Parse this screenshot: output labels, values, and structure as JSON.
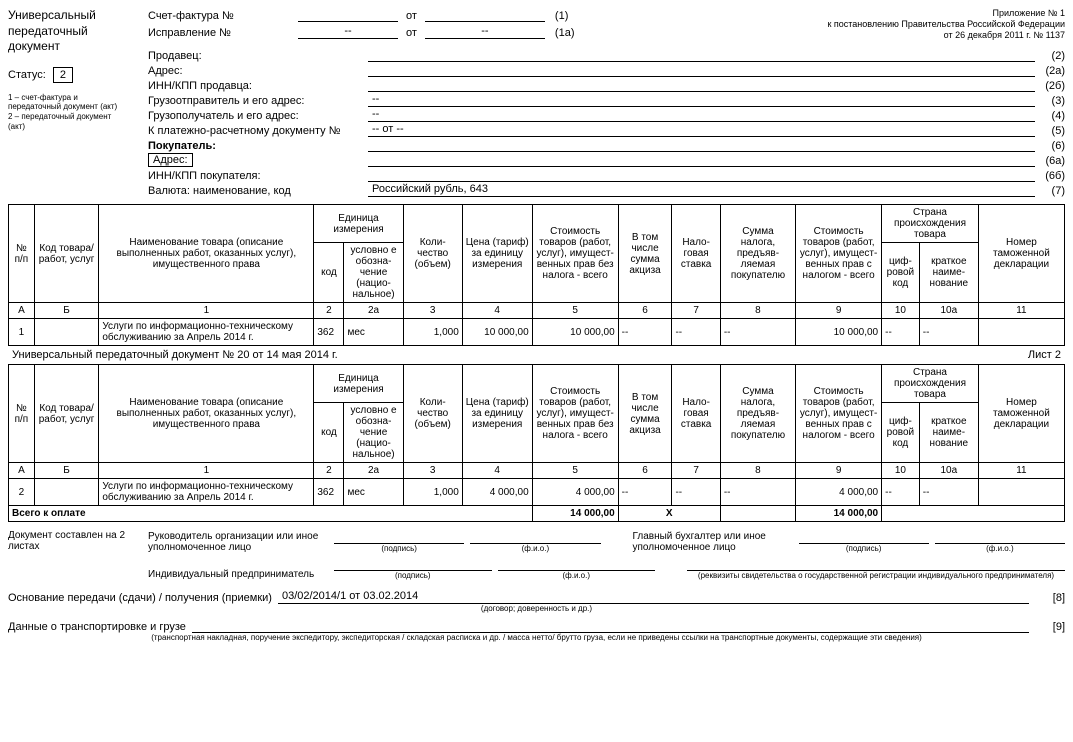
{
  "appendix": {
    "l1": "Приложение № 1",
    "l2": "к постановлению Правительства Российской Федерации",
    "l3": "от 26 декабря 2011 г. № 1137"
  },
  "leftcol": {
    "title": "Универсальный передаточный документ",
    "status_label": "Статус:",
    "status_value": "2",
    "footnote": "1 – счет-фактура и передаточный документ (акт)\n2 – передаточный документ (акт)"
  },
  "inv": {
    "sf_label": "Счет-фактура №",
    "sf_from": "от",
    "sf_code": "(1)",
    "corr_label": "Исправление №",
    "corr_dash": "--",
    "corr_from": "от",
    "corr_dash2": "--",
    "corr_code": "(1а)"
  },
  "seller": [
    {
      "label": "Продавец:",
      "val": "",
      "code": "(2)"
    },
    {
      "label": "Адрес:",
      "val": "",
      "code": "(2а)"
    },
    {
      "label": "ИНН/КПП продавца:",
      "val": "",
      "code": "(2б)"
    },
    {
      "label": "Грузоотправитель и его адрес:",
      "val": "--",
      "code": "(3)"
    },
    {
      "label": "Грузополучатель и его адрес:",
      "val": "--",
      "code": "(4)"
    },
    {
      "label": "К платежно-расчетному документу №",
      "val": "-- от --",
      "code": "(5)"
    },
    {
      "label": "Покупатель:",
      "val": "",
      "code": "(6)",
      "bold": true
    },
    {
      "label": "Адрес:",
      "val": "",
      "code": "(6а)",
      "box": true
    },
    {
      "label": "ИНН/КПП покупателя:",
      "val": "",
      "code": "(6б)"
    },
    {
      "label": "Валюта: наименование, код",
      "val": "Российский рубль, 643",
      "code": "(7)"
    }
  ],
  "hdr": {
    "c_num": "№ п/п",
    "c_code": "Код товара/ работ, услуг",
    "c_name": "Наименование товара (описание выполненных работ, оказанных услуг), имущественного права",
    "c_unit": "Единица измерения",
    "c_unit_code": "код",
    "c_unit_name": "условно е обозна­чение (нацио­нальное)",
    "c_qty": "Коли­чество (объем)",
    "c_price": "Цена (тариф) за единицу измерения",
    "c_sum_nt": "Стоимость товаров (работ, услуг), имущест­венных прав без налога - всего",
    "c_excise": "В том числе сумма акциза",
    "c_rate": "Нало­говая ставка",
    "c_tax": "Сумма налога, предъяв­ляемая покупателю",
    "c_sum_t": "Стоимость товаров (работ, услуг), имущест­венных прав с налогом - всего",
    "c_country": "Страна происхождения товара",
    "c_country_code": "циф­ро­вой код",
    "c_country_name": "краткое наиме­нование",
    "c_decl": "Номер таможенной декларации"
  },
  "letters": {
    "a": "А",
    "b": "Б",
    "c1": "1",
    "c2": "2",
    "c2a": "2а",
    "c3": "3",
    "c4": "4",
    "c5": "5",
    "c6": "6",
    "c7": "7",
    "c8": "8",
    "c9": "9",
    "c10": "10",
    "c10a": "10а",
    "c11": "11"
  },
  "row1": {
    "n": "1",
    "code": "",
    "name": "Услуги по информационно-техническому обслуживанию за Апрель 2014 г.",
    "ucode": "362",
    "uname": "мес",
    "qty": "1,000",
    "price": "10 000,00",
    "sum_nt": "10 000,00",
    "excise": "--",
    "rate": "--",
    "tax": "--",
    "sum_t": "10 000,00",
    "cc": "--",
    "cn": "--",
    "decl": ""
  },
  "page2_title": "Универсальный передаточный документ № 20 от 14 мая 2014 г.",
  "page2_sheet": "Лист 2",
  "row2": {
    "n": "2",
    "code": "",
    "name": "Услуги по информационно-техническому обслуживанию за Апрель 2014 г.",
    "ucode": "362",
    "uname": "мес",
    "qty": "1,000",
    "price": "4 000,00",
    "sum_nt": "4 000,00",
    "excise": "--",
    "rate": "--",
    "tax": "--",
    "sum_t": "4 000,00",
    "cc": "--",
    "cn": "--",
    "decl": ""
  },
  "totals": {
    "label": "Всего к оплате",
    "sum_nt": "14 000,00",
    "x": "X",
    "sum_t": "14 000,00"
  },
  "sig": {
    "doc_on": "Документ составлен на 2 листах",
    "ruk": "Руководитель организации или иное уполномоченное лицо",
    "gb": "Главный бухгалтер или иное уполномоченное лицо",
    "ip": "Индивидуальный предприниматель",
    "podpis": "(подпись)",
    "fio": "(ф.и.о.)",
    "rekv": "(реквизиты свидетельства о государственной регистрации индивидуального предпринимателя)"
  },
  "foot": {
    "osn_label": "Основание передачи (сдачи) / получения (приемки)",
    "osn_val": "03/02/2014/1 от 03.02.2014",
    "osn_code": "[8]",
    "osn_sub": "(договор; доверенность и др.)",
    "trans_label": "Данные о транспортировке и грузе",
    "trans_code": "[9]",
    "trans_sub": "(транспортная накладная, поручение экспедитору, экспедиторская / складская расписка и др. / масса нетто/ брутто груза, если не приведены ссылки на транспортные документы, содержащие эти сведения)"
  }
}
